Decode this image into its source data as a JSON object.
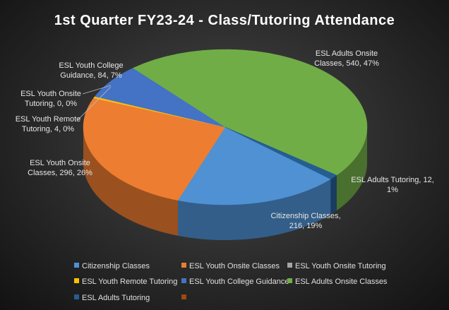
{
  "chart_data": {
    "type": "pie3d",
    "title": "1st Quarter FY23-24 - Class/Tutoring Attendance",
    "categories": [
      "Citizenship Classes",
      "ESL Youth Onsite Classes",
      "ESL Youth Onsite Tutoring",
      "ESL Youth Remote Tutoring",
      "ESL Youth College Guidance",
      "ESL Adults Onsite Classes",
      "ESL Adults Tutoring",
      null
    ],
    "values": [
      216,
      296,
      0,
      4,
      84,
      540,
      12,
      null
    ],
    "value_labels": [
      "Citizenship Classes, 216, 19%",
      "ESL Youth Onsite Classes, 296, 26%",
      "ESL Youth Onsite Tutoring, 0, 0%",
      "ESL Youth Remote Tutoring, 4, 0%",
      "ESL Youth College Guidance, 84, 7%",
      "ESL Adults Onsite Classes, 540, 47%",
      "ESL Adults Tutoring, 12, 1%",
      null
    ],
    "colors": [
      "#4f91d3",
      "#ed7d31",
      "#a5a5a5",
      "#ffc000",
      "#4472c4",
      "#70ad47",
      "#255e91",
      "#9e480e"
    ],
    "legend": "bottom"
  }
}
